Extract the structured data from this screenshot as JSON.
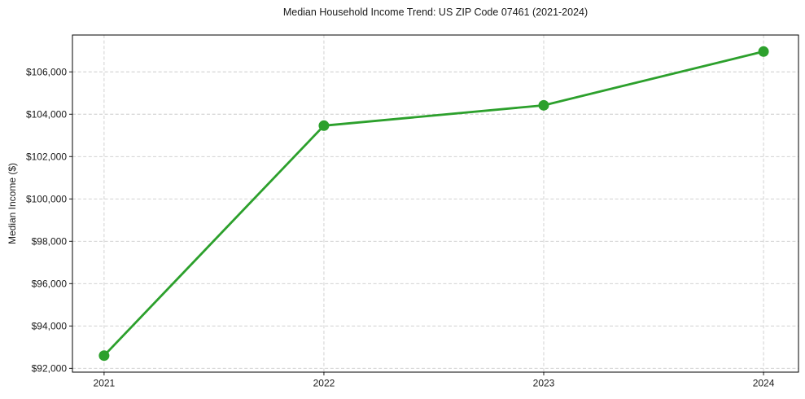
{
  "figure": {
    "background": "#ffffff"
  },
  "chart_data": {
    "type": "line",
    "title": "Median Household Income Trend: US ZIP Code 07461 (2021-2024)",
    "xlabel": "",
    "ylabel": "Median Income ($)",
    "series": [
      {
        "name": "Median Household Income",
        "x": [
          2021,
          2022,
          2023,
          2024
        ],
        "y": [
          92600,
          103460,
          104420,
          106960
        ],
        "color": "#2ca02c",
        "marker": "circle",
        "line_width": 2.8,
        "marker_radius": 6.5
      }
    ],
    "xlim": [
      2020.856,
      2024.159
    ],
    "ylim": [
      91820,
      107740
    ],
    "xticks": [
      2021,
      2022,
      2023,
      2024
    ],
    "xtick_labels": [
      "2021",
      "2022",
      "2023",
      "2024"
    ],
    "yticks": [
      92000,
      94000,
      96000,
      98000,
      100000,
      102000,
      104000,
      106000
    ],
    "ytick_labels": [
      "$92,000",
      "$94,000",
      "$96,000",
      "$98,000",
      "$100,000",
      "$102,000",
      "$104,000",
      "$106,000"
    ],
    "grid": true,
    "grid_color": "#cccccc",
    "grid_style": "dashed",
    "spine_color": "#000000",
    "text_color": "#1a1a1a",
    "legend": "none"
  }
}
